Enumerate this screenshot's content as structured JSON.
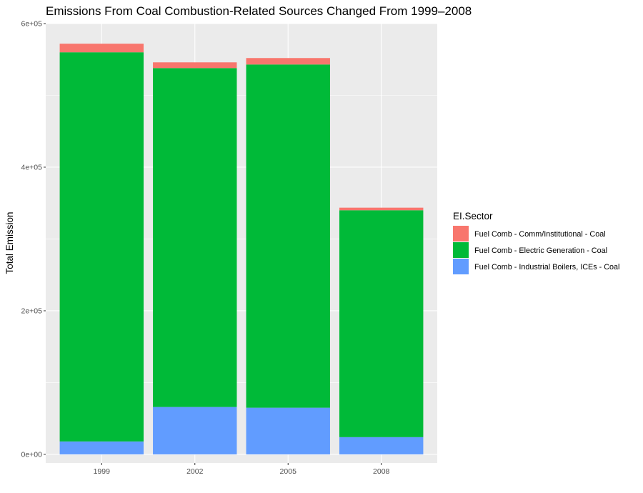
{
  "chart_data": {
    "type": "bar",
    "stacked": true,
    "title": "Emissions From Coal Combustion-Related Sources Changed From 1999–2008",
    "xlabel": "",
    "ylabel": "Total Emission",
    "categories": [
      "1999",
      "2002",
      "2005",
      "2008"
    ],
    "series": [
      {
        "name": "Fuel Comb - Industrial Boilers, ICEs - Coal",
        "color": "#619CFF",
        "values": [
          18000,
          66000,
          65000,
          24000
        ]
      },
      {
        "name": "Fuel Comb - Electric Generation - Coal",
        "color": "#00BA38",
        "values": [
          542000,
          472000,
          478000,
          316000
        ]
      },
      {
        "name": "Fuel Comb - Comm/Institutional - Coal",
        "color": "#F8766D",
        "values": [
          12000,
          8000,
          9000,
          3600
        ]
      }
    ],
    "ylim": [
      -12000,
      600000
    ],
    "yticks": [
      0,
      200000,
      400000,
      600000
    ],
    "ytick_labels": [
      "0e+00",
      "2e+05",
      "4e+05",
      "6e+05"
    ],
    "legend": {
      "title": "EI.Sector",
      "position": "right",
      "entries": [
        {
          "label": "Fuel Comb - Comm/Institutional - Coal",
          "color": "#F8766D"
        },
        {
          "label": "Fuel Comb - Electric Generation - Coal",
          "color": "#00BA38"
        },
        {
          "label": "Fuel Comb - Industrial Boilers, ICEs - Coal",
          "color": "#619CFF"
        }
      ]
    },
    "grid": true,
    "panel_background": "#EBEBEB"
  }
}
